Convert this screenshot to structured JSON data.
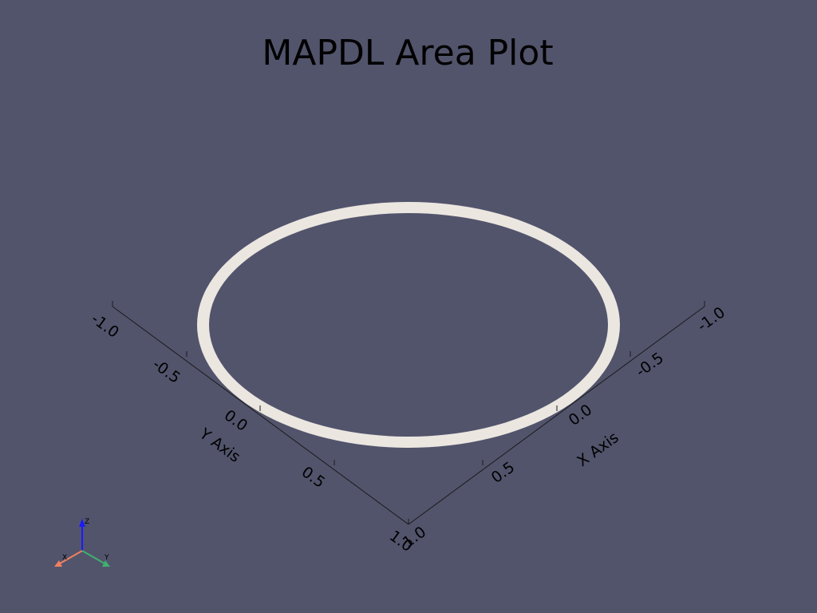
{
  "title": "MAPDL Area Plot",
  "colors": {
    "background": "#52546c",
    "ring": "#ebe6e0",
    "axis_line": "#1a1a1a",
    "triad_x": "#f08060",
    "triad_y": "#40b070",
    "triad_z": "#1a1aff"
  },
  "x_axis": {
    "title": "X Axis",
    "ticks": [
      "-1.0",
      "-0.5",
      "0.0",
      "0.5",
      "1.0"
    ]
  },
  "y_axis": {
    "title": "Y Axis",
    "ticks": [
      "-1.0",
      "-0.5",
      "0.0",
      "0.5",
      "1.0"
    ]
  },
  "triad": {
    "x_label": "X",
    "y_label": "Y",
    "z_label": "Z"
  }
}
